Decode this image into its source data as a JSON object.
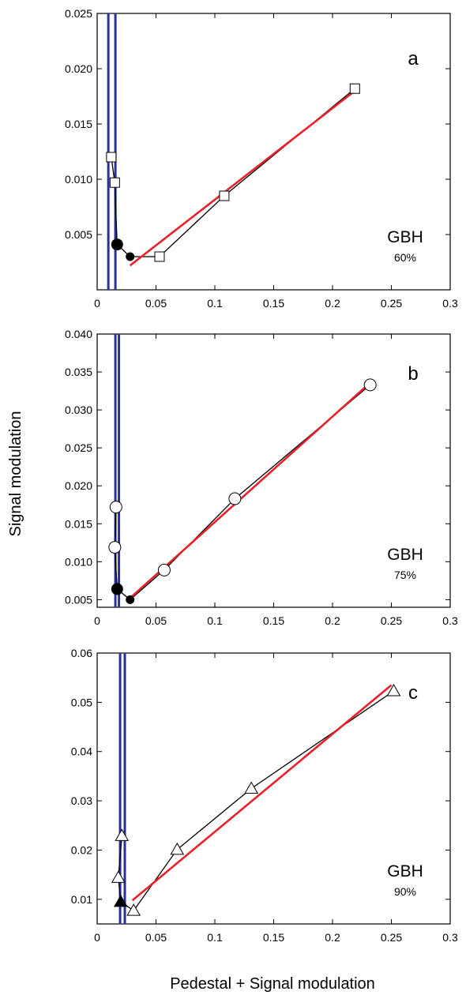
{
  "figure": {
    "ylabel": "Signal modulation",
    "xlabel": "Pedestal + Signal modulation"
  },
  "colors": {
    "data_line": "#000000",
    "fit_line": "#e8202a",
    "threshold_line": "#2b2f9e",
    "marker_open_fill": "#ffffff",
    "marker_filled": "#000000"
  },
  "chart_data": [
    {
      "type": "line",
      "panel": "a",
      "annotation": "GBH",
      "annotation_sub": "60%",
      "xlim": [
        0,
        0.3
      ],
      "ylim": [
        0,
        0.025
      ],
      "xticks": [
        0,
        0.05,
        0.1,
        0.15,
        0.2,
        0.25,
        0.3
      ],
      "xtick_labels": [
        "0",
        "0.05",
        "0.1",
        "0.15",
        "0.2",
        "0.25",
        "0.3"
      ],
      "yticks": [
        0.005,
        0.01,
        0.015,
        0.02,
        0.025
      ],
      "ytick_labels": [
        "0.005",
        "0.010",
        "0.015",
        "0.020",
        "0.025"
      ],
      "marker": "square",
      "series": [
        {
          "style": "data",
          "x": [
            0.012,
            0.015,
            0.017,
            0.028,
            0.053,
            0.108,
            0.219
          ],
          "y": [
            0.012,
            0.0097,
            0.0041,
            0.003,
            0.003,
            0.0085,
            0.0182
          ],
          "filled": [
            false,
            false,
            true,
            true,
            false,
            false,
            false
          ]
        },
        {
          "style": "fit",
          "x": [
            0.028,
            0.219
          ],
          "y": [
            0.0022,
            0.018
          ]
        },
        {
          "style": "vertical",
          "x": [
            0.0095,
            0.0095
          ],
          "y": [
            0,
            0.025
          ]
        },
        {
          "style": "vertical",
          "x": [
            0.0155,
            0.0155
          ],
          "y": [
            0,
            0.025
          ]
        }
      ]
    },
    {
      "type": "line",
      "panel": "b",
      "annotation": "GBH",
      "annotation_sub": "75%",
      "xlim": [
        0,
        0.3
      ],
      "ylim": [
        0.004,
        0.04
      ],
      "xticks": [
        0,
        0.05,
        0.1,
        0.15,
        0.2,
        0.25,
        0.3
      ],
      "xtick_labels": [
        "0",
        "0.05",
        "0.1",
        "0.15",
        "0.2",
        "0.25",
        "0.3"
      ],
      "yticks": [
        0.005,
        0.01,
        0.015,
        0.02,
        0.025,
        0.03,
        0.035,
        0.04
      ],
      "ytick_labels": [
        "0.005",
        "0.010",
        "0.015",
        "0.020",
        "0.025",
        "0.030",
        "0.035",
        "0.040"
      ],
      "marker": "circle",
      "series": [
        {
          "style": "data",
          "x": [
            0.016,
            0.015,
            0.017,
            0.028,
            0.057,
            0.117,
            0.232
          ],
          "y": [
            0.0172,
            0.0119,
            0.0064,
            0.005,
            0.0089,
            0.0183,
            0.0333
          ],
          "filled": [
            false,
            false,
            true,
            true,
            false,
            false,
            false
          ]
        },
        {
          "style": "fit",
          "x": [
            0.025,
            0.23
          ],
          "y": [
            0.0048,
            0.0333
          ]
        },
        {
          "style": "vertical",
          "x": [
            0.0155,
            0.0155
          ],
          "y": [
            0.004,
            0.04
          ]
        },
        {
          "style": "vertical",
          "x": [
            0.0185,
            0.0185
          ],
          "y": [
            0.004,
            0.04
          ]
        }
      ]
    },
    {
      "type": "line",
      "panel": "c",
      "annotation": "GBH",
      "annotation_sub": "90%",
      "xlim": [
        0,
        0.3
      ],
      "ylim": [
        0.005,
        0.06
      ],
      "xticks": [
        0,
        0.05,
        0.1,
        0.15,
        0.2,
        0.25,
        0.3
      ],
      "xtick_labels": [
        "0",
        "0.05",
        "0.1",
        "0.15",
        "0.2",
        "0.25",
        "0.3"
      ],
      "yticks": [
        0.01,
        0.02,
        0.03,
        0.04,
        0.05,
        0.06
      ],
      "ytick_labels": [
        "0.01",
        "0.02",
        "0.03",
        "0.04",
        "0.05",
        "0.06"
      ],
      "marker": "triangle",
      "series": [
        {
          "style": "data",
          "x": [
            0.021,
            0.018,
            0.02,
            0.031,
            0.068,
            0.131,
            0.252
          ],
          "y": [
            0.0229,
            0.0144,
            0.0095,
            0.0077,
            0.0201,
            0.0325,
            0.0523
          ],
          "filled": [
            false,
            false,
            true,
            false,
            false,
            false,
            false
          ]
        },
        {
          "style": "fit",
          "x": [
            0.03,
            0.25
          ],
          "y": [
            0.0098,
            0.0535
          ]
        },
        {
          "style": "vertical",
          "x": [
            0.0195,
            0.0195
          ],
          "y": [
            0.005,
            0.06
          ]
        },
        {
          "style": "vertical",
          "x": [
            0.0235,
            0.0235
          ],
          "y": [
            0.005,
            0.06
          ]
        }
      ]
    }
  ]
}
